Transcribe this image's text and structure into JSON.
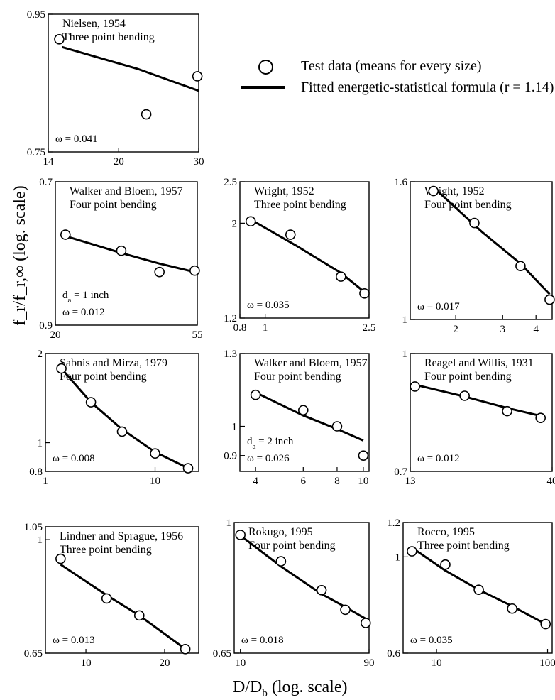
{
  "legend": {
    "marker_label": "Test data (means for every size)",
    "line_label": "Fitted energetic-statistical formula (r = 1.14)"
  },
  "shared_axes": {
    "xlabel_main": "D/D",
    "xlabel_sub": "b",
    "xlabel_tail": " (log. scale)",
    "ylabel": "f_r/f_r,∞ (log. scale)"
  },
  "chart_data": [
    {
      "type": "scatter",
      "title": "Nielsen, 1954",
      "subtitle": "Three point bending",
      "annotations": [
        "ω = 0.041"
      ],
      "xscale": "log",
      "yscale": "log",
      "xlim": [
        14,
        30
      ],
      "ylim": [
        0.75,
        0.95
      ],
      "x_ticks": [
        {
          "v": 14,
          "label": "14"
        },
        {
          "v": 20,
          "label": "20"
        },
        {
          "v": 30,
          "label": "30"
        }
      ],
      "y_ticks": [
        {
          "v": 0.75,
          "label": "0.75"
        },
        {
          "v": 0.95,
          "label": "0.95"
        }
      ],
      "series": [
        {
          "name": "Test data (means for every size)",
          "kind": "points",
          "x": [
            14.8,
            23.0,
            29.8
          ],
          "y": [
            0.91,
            0.8,
            0.854
          ]
        },
        {
          "name": "Fitted energetic-statistical formula (r = 1.14)",
          "kind": "line",
          "x": [
            15.0,
            22.0,
            30.0
          ],
          "y": [
            0.898,
            0.865,
            0.833
          ]
        }
      ]
    },
    {
      "type": "scatter",
      "title": "Walker and Bloem, 1957",
      "subtitle": "Four point bending",
      "annotations": [
        "d_a = 1 inch",
        "ω = 0.012"
      ],
      "xscale": "log",
      "yscale": "log",
      "xlim": [
        20,
        55
      ],
      "ylim": [
        0.9,
        0.7
      ],
      "x_ticks": [
        {
          "v": 20,
          "label": "20"
        },
        {
          "v": 55,
          "label": "55"
        }
      ],
      "y_ticks": [
        {
          "v": 0.7,
          "label": "0.7"
        },
        {
          "v": 0.9,
          "label": "0.9"
        }
      ],
      "series": [
        {
          "name": "Test data (means for every size)",
          "kind": "points",
          "x": [
            21.5,
            32.0,
            42.0,
            54.0
          ],
          "y": [
            0.768,
            0.79,
            0.82,
            0.818
          ]
        },
        {
          "name": "Fitted energetic-statistical formula (r = 1.14)",
          "kind": "line",
          "x": [
            21.5,
            32.0,
            42.0,
            54.0
          ],
          "y": [
            0.77,
            0.793,
            0.808,
            0.82
          ]
        }
      ]
    },
    {
      "type": "scatter",
      "title": "Wright, 1952",
      "subtitle": "Three point bending",
      "annotations": [
        "ω = 0.035"
      ],
      "xscale": "log",
      "yscale": "log",
      "xlim": [
        0.8,
        2.5
      ],
      "ylim": [
        1.2,
        2.5
      ],
      "x_ticks": [
        {
          "v": 0.8,
          "label": "0.8"
        },
        {
          "v": 1,
          "label": "1"
        },
        {
          "v": 2.5,
          "label": "2.5"
        }
      ],
      "y_ticks": [
        {
          "v": 1.2,
          "label": "1.2"
        },
        {
          "v": 2,
          "label": "2"
        },
        {
          "v": 2.5,
          "label": "2.5"
        }
      ],
      "series": [
        {
          "name": "Test data (means for every size)",
          "kind": "points",
          "x": [
            0.88,
            1.25,
            1.95,
            2.4
          ],
          "y": [
            2.02,
            1.88,
            1.5,
            1.37
          ]
        },
        {
          "name": "Fitted energetic-statistical formula (r = 1.14)",
          "kind": "line",
          "x": [
            0.88,
            1.3,
            1.95,
            2.4
          ],
          "y": [
            2.04,
            1.78,
            1.53,
            1.38
          ]
        }
      ]
    },
    {
      "type": "scatter",
      "title": "Wright, 1952",
      "subtitle": "Four point bending",
      "annotations": [
        "ω = 0.017"
      ],
      "xscale": "log",
      "yscale": "log",
      "xlim": [
        1.35,
        4.6
      ],
      "ylim": [
        1,
        1.6
      ],
      "x_ticks": [
        {
          "v": 2,
          "label": "2"
        },
        {
          "v": 3,
          "label": "3"
        },
        {
          "v": 4,
          "label": "4"
        }
      ],
      "y_ticks": [
        {
          "v": 1,
          "label": "1"
        },
        {
          "v": 1.6,
          "label": "1.6"
        }
      ],
      "series": [
        {
          "name": "Test data (means for every size)",
          "kind": "points",
          "x": [
            1.65,
            2.35,
            3.5,
            4.5
          ],
          "y": [
            1.55,
            1.39,
            1.2,
            1.07
          ]
        },
        {
          "name": "Fitted energetic-statistical formula (r = 1.14)",
          "kind": "line",
          "x": [
            1.65,
            2.5,
            3.5,
            4.5
          ],
          "y": [
            1.57,
            1.35,
            1.21,
            1.09
          ]
        }
      ]
    },
    {
      "type": "scatter",
      "title": "Sabnis and Mirza, 1979",
      "subtitle": "Four point bending",
      "annotations": [
        "ω = 0.008"
      ],
      "xscale": "log",
      "yscale": "log",
      "xlim": [
        1,
        25
      ],
      "ylim": [
        0.8,
        2
      ],
      "x_ticks": [
        {
          "v": 1,
          "label": "1"
        },
        {
          "v": 10,
          "label": "10"
        }
      ],
      "y_ticks": [
        {
          "v": 0.8,
          "label": "0.8"
        },
        {
          "v": 1,
          "label": "1"
        },
        {
          "v": 2,
          "label": "2"
        }
      ],
      "series": [
        {
          "name": "Test data (means for every size)",
          "kind": "points",
          "x": [
            1.4,
            2.6,
            5.0,
            10.0,
            20.0
          ],
          "y": [
            1.78,
            1.37,
            1.09,
            0.92,
            0.82
          ]
        },
        {
          "name": "Fitted energetic-statistical formula (r = 1.14)",
          "kind": "line",
          "x": [
            1.4,
            2.6,
            5.0,
            10.0,
            20.0
          ],
          "y": [
            1.78,
            1.37,
            1.11,
            0.93,
            0.82
          ]
        }
      ]
    },
    {
      "type": "scatter",
      "title": "Walker and Bloem, 1957",
      "subtitle": "Four point bending",
      "annotations": [
        "d_a = 2 inch",
        "ω = 0.026"
      ],
      "xscale": "log",
      "yscale": "log",
      "xlim": [
        3.5,
        10.5
      ],
      "ylim": [
        0.85,
        1.3
      ],
      "x_ticks": [
        {
          "v": 4,
          "label": "4"
        },
        {
          "v": 6,
          "label": "6"
        },
        {
          "v": 8,
          "label": "8"
        },
        {
          "v": 10,
          "label": "10"
        }
      ],
      "y_ticks": [
        {
          "v": 0.9,
          "label": "0.9"
        },
        {
          "v": 1,
          "label": "1"
        },
        {
          "v": 1.3,
          "label": "1.3"
        }
      ],
      "series": [
        {
          "name": "Test data (means for every size)",
          "kind": "points",
          "x": [
            4.0,
            6.0,
            8.0,
            10.0
          ],
          "y": [
            1.12,
            1.06,
            1.0,
            0.9
          ]
        },
        {
          "name": "Fitted energetic-statistical formula (r = 1.14)",
          "kind": "line",
          "x": [
            4.0,
            6.0,
            8.0,
            10.0
          ],
          "y": [
            1.13,
            1.04,
            0.99,
            0.95
          ]
        }
      ]
    },
    {
      "type": "scatter",
      "title": "Reagel and Willis, 1931",
      "subtitle": "Four point bending",
      "annotations": [
        "ω = 0.012"
      ],
      "xscale": "log",
      "yscale": "log",
      "xlim": [
        13,
        40
      ],
      "ylim": [
        0.7,
        1
      ],
      "x_ticks": [
        {
          "v": 13,
          "label": "13"
        },
        {
          "v": 40,
          "label": "40"
        }
      ],
      "y_ticks": [
        {
          "v": 0.7,
          "label": "0.7"
        },
        {
          "v": 1,
          "label": "1"
        }
      ],
      "series": [
        {
          "name": "Test data (means for every size)",
          "kind": "points",
          "x": [
            13.5,
            20.0,
            28.0,
            36.5
          ],
          "y": [
            0.905,
            0.88,
            0.84,
            0.823
          ]
        },
        {
          "name": "Fitted energetic-statistical formula (r = 1.14)",
          "kind": "line",
          "x": [
            13.5,
            20.0,
            28.0,
            36.5
          ],
          "y": [
            0.91,
            0.878,
            0.848,
            0.828
          ]
        }
      ]
    },
    {
      "type": "scatter",
      "title": "Lindner and Sprague, 1956",
      "subtitle": "Three point bending",
      "annotations": [
        "ω = 0.013"
      ],
      "xscale": "log",
      "yscale": "log",
      "xlim": [
        7,
        27
      ],
      "ylim": [
        0.65,
        1.05
      ],
      "x_ticks": [
        {
          "v": 10,
          "label": "10"
        },
        {
          "v": 20,
          "label": "20"
        }
      ],
      "y_ticks": [
        {
          "v": 0.65,
          "label": "0.65"
        },
        {
          "v": 1,
          "label": "1"
        },
        {
          "v": 1.05,
          "label": "1.05"
        }
      ],
      "series": [
        {
          "name": "Test data (means for every size)",
          "kind": "points",
          "x": [
            8.0,
            12.0,
            16.0,
            24.0
          ],
          "y": [
            0.93,
            0.8,
            0.75,
            0.66
          ]
        },
        {
          "name": "Fitted energetic-statistical formula (r = 1.14)",
          "kind": "line",
          "x": [
            8.0,
            12.0,
            16.0,
            24.0
          ],
          "y": [
            0.91,
            0.81,
            0.75,
            0.66
          ]
        }
      ]
    },
    {
      "type": "scatter",
      "title": "Rokugo, 1995",
      "subtitle": "Four point bending",
      "annotations": [
        "ω = 0.018"
      ],
      "xscale": "log",
      "yscale": "log",
      "xlim": [
        9,
        90
      ],
      "ylim": [
        0.65,
        1
      ],
      "x_ticks": [
        {
          "v": 10,
          "label": "10"
        },
        {
          "v": 90,
          "label": "90"
        }
      ],
      "y_ticks": [
        {
          "v": 0.65,
          "label": "0.65"
        },
        {
          "v": 1,
          "label": "1"
        }
      ],
      "series": [
        {
          "name": "Test data (means for every size)",
          "kind": "points",
          "x": [
            10,
            20,
            40,
            60,
            85
          ],
          "y": [
            0.96,
            0.88,
            0.8,
            0.75,
            0.718
          ]
        },
        {
          "name": "Fitted energetic-statistical formula (r = 1.14)",
          "kind": "line",
          "x": [
            10,
            20,
            40,
            60,
            85
          ],
          "y": [
            0.958,
            0.865,
            0.79,
            0.757,
            0.728
          ]
        }
      ]
    },
    {
      "type": "scatter",
      "title": "Rocco, 1995",
      "subtitle": "Three point bending",
      "annotations": [
        "ω = 0.035"
      ],
      "xscale": "log",
      "yscale": "log",
      "xlim": [
        5,
        110
      ],
      "ylim": [
        0.6,
        1.2
      ],
      "x_ticks": [
        {
          "v": 10,
          "label": "10"
        },
        {
          "v": 100,
          "label": "100"
        }
      ],
      "y_ticks": [
        {
          "v": 0.6,
          "label": "0.6"
        },
        {
          "v": 1,
          "label": "1"
        },
        {
          "v": 1.2,
          "label": "1.2"
        }
      ],
      "series": [
        {
          "name": "Test data (means for every size)",
          "kind": "points",
          "x": [
            6,
            12,
            24,
            48,
            96
          ],
          "y": [
            1.03,
            0.96,
            0.84,
            0.76,
            0.7
          ]
        },
        {
          "name": "Fitted energetic-statistical formula (r = 1.14)",
          "kind": "line",
          "x": [
            6,
            12,
            24,
            48,
            96
          ],
          "y": [
            1.05,
            0.93,
            0.84,
            0.77,
            0.7
          ]
        }
      ]
    }
  ]
}
